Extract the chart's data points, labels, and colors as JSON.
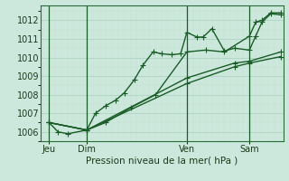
{
  "title": "Pression niveau de la mer( hPa )",
  "bg_color": "#cce8dc",
  "grid_major_color": "#aacfbe",
  "grid_minor_color": "#c0dfd0",
  "line_color": "#1a5c28",
  "ylim": [
    1005.5,
    1012.8
  ],
  "yticks": [
    1006,
    1007,
    1008,
    1009,
    1010,
    1011,
    1012
  ],
  "xlim": [
    -0.2,
    19.2
  ],
  "day_labels": [
    "Jeu",
    "Dim",
    "Ven",
    "Sam"
  ],
  "day_positions": [
    0.5,
    3.5,
    11.5,
    16.5
  ],
  "vline_positions": [
    0.5,
    3.5,
    11.5,
    16.5
  ],
  "series": [
    {
      "x": [
        0.5,
        1.2,
        2.0,
        3.5,
        4.2,
        5.0,
        5.8,
        6.5,
        7.3,
        8.0,
        8.8,
        9.5,
        10.3,
        11.0,
        11.5,
        12.3,
        12.8,
        13.5,
        14.5,
        15.3,
        16.5,
        17.0,
        17.5,
        18.2,
        19.0
      ],
      "y": [
        1006.5,
        1006.0,
        1005.9,
        1006.1,
        1007.0,
        1007.4,
        1007.7,
        1008.1,
        1008.8,
        1009.6,
        1010.3,
        1010.2,
        1010.15,
        1010.2,
        1011.35,
        1011.1,
        1011.1,
        1011.55,
        1010.35,
        1010.5,
        1010.4,
        1011.15,
        1011.9,
        1012.35,
        1012.3
      ]
    },
    {
      "x": [
        0.5,
        3.5,
        11.5,
        15.3,
        16.5,
        19.0
      ],
      "y": [
        1006.5,
        1006.1,
        1008.9,
        1009.7,
        1009.8,
        1010.3
      ]
    },
    {
      "x": [
        0.5,
        3.5,
        11.5,
        15.3,
        16.5,
        19.0
      ],
      "y": [
        1006.5,
        1006.1,
        1008.6,
        1009.5,
        1009.7,
        1010.05
      ]
    },
    {
      "x": [
        0.5,
        3.5,
        5.0,
        7.0,
        9.0,
        11.5,
        13.0,
        14.5,
        16.5,
        17.0,
        17.5,
        18.2,
        19.0
      ],
      "y": [
        1006.5,
        1006.1,
        1006.5,
        1007.3,
        1008.0,
        1010.3,
        1010.4,
        1010.3,
        1011.15,
        1011.9,
        1012.0,
        1012.4,
        1012.4
      ]
    }
  ],
  "marker": "+",
  "markersize": 4,
  "linewidth": 1.0
}
